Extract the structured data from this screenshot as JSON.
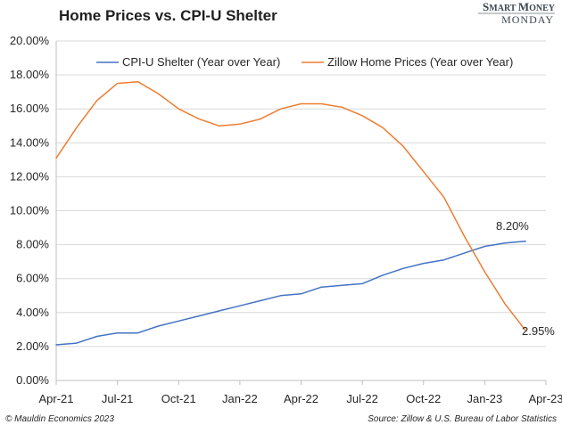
{
  "brand": {
    "line1_a": "S",
    "line1_b": "MART ",
    "line1_c": "M",
    "line1_d": "ONEY",
    "line2": "MONDAY"
  },
  "footer": {
    "left": "© Mauldin Economics 2023",
    "right": "Source: Zillow & U.S. Bureau of Labor Statistics"
  },
  "colors": {
    "cpi": "#4472c4",
    "zillow": "#ed7d31",
    "grid": "#d9d9d9",
    "axis": "#bfbfbf"
  },
  "chart_data": {
    "type": "line",
    "title": "Home Prices vs. CPI-U Shelter",
    "xlabel": "",
    "ylabel": "",
    "ylim": [
      0,
      20
    ],
    "yticks": [
      "0.00%",
      "2.00%",
      "4.00%",
      "6.00%",
      "8.00%",
      "10.00%",
      "12.00%",
      "14.00%",
      "16.00%",
      "18.00%",
      "20.00%"
    ],
    "xticks": [
      "Apr-21",
      "Jul-21",
      "Oct-21",
      "Jan-22",
      "Apr-22",
      "Jul-22",
      "Oct-22",
      "Jan-23",
      "Apr-23"
    ],
    "x": [
      "Apr-21",
      "May-21",
      "Jun-21",
      "Jul-21",
      "Aug-21",
      "Sep-21",
      "Oct-21",
      "Nov-21",
      "Dec-21",
      "Jan-22",
      "Feb-22",
      "Mar-22",
      "Apr-22",
      "May-22",
      "Jun-22",
      "Jul-22",
      "Aug-22",
      "Sep-22",
      "Oct-22",
      "Nov-22",
      "Dec-22",
      "Jan-23",
      "Feb-23",
      "Mar-23"
    ],
    "grid": true,
    "legend": "top",
    "series": [
      {
        "name": "CPI-U Shelter (Year over Year)",
        "values": [
          2.1,
          2.2,
          2.6,
          2.8,
          2.8,
          3.2,
          3.5,
          3.8,
          4.1,
          4.4,
          4.7,
          5.0,
          5.1,
          5.5,
          5.6,
          5.7,
          6.2,
          6.6,
          6.9,
          7.1,
          7.5,
          7.9,
          8.1,
          8.2
        ]
      },
      {
        "name": "Zillow Home Prices (Year over Year)",
        "values": [
          13.1,
          14.9,
          16.5,
          17.5,
          17.6,
          16.9,
          16.0,
          15.4,
          15.0,
          15.1,
          15.4,
          16.0,
          16.3,
          16.3,
          16.1,
          15.6,
          14.9,
          13.8,
          12.3,
          10.8,
          8.5,
          6.4,
          4.5,
          2.95
        ]
      }
    ],
    "annotations": [
      "8.20%",
      "2.95%"
    ]
  }
}
